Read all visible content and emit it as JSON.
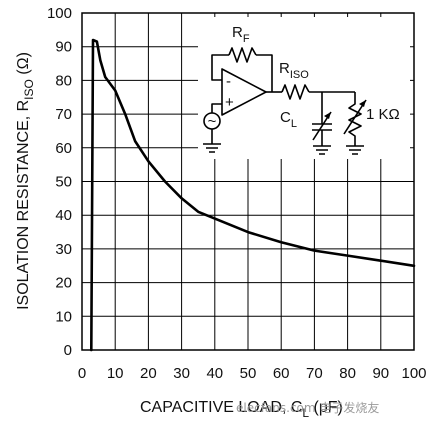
{
  "chart_data": {
    "type": "line",
    "title": "",
    "xlabel_parts": [
      "CAPACITIVE LOAD, C",
      "L",
      " (pF)"
    ],
    "ylabel_parts": [
      "ISOLATION RESISTANCE, R",
      "ISO",
      " (Ω)"
    ],
    "xlim": [
      0,
      100
    ],
    "ylim": [
      0,
      100
    ],
    "x_ticks": [
      0,
      10,
      20,
      30,
      40,
      50,
      60,
      70,
      80,
      90,
      100
    ],
    "y_ticks": [
      0,
      10,
      20,
      30,
      40,
      50,
      60,
      70,
      80,
      90,
      100
    ],
    "grid": true,
    "series": [
      {
        "x": [
          2.8,
          3.3,
          4.5,
          5.5,
          7,
          10,
          13,
          16,
          20,
          25,
          30,
          35,
          40,
          45,
          50,
          60,
          70,
          80,
          90,
          100
        ],
        "y": [
          0,
          92,
          91.5,
          86,
          81,
          77,
          70,
          62,
          56,
          50,
          45,
          41,
          39,
          37,
          35,
          32,
          29.5,
          28,
          26.5,
          25
        ]
      }
    ]
  },
  "inset": {
    "rf_main": "R",
    "rf_sub": "F",
    "riso_main": "R",
    "riso_sub": "ISO",
    "cl_main": "C",
    "cl_sub": "L",
    "load_resistor": "1 KΩ",
    "minus_sign": "-",
    "plus_sign": "+",
    "source_symbol": "~"
  },
  "watermark": "elecfans.com 电子发烧友"
}
